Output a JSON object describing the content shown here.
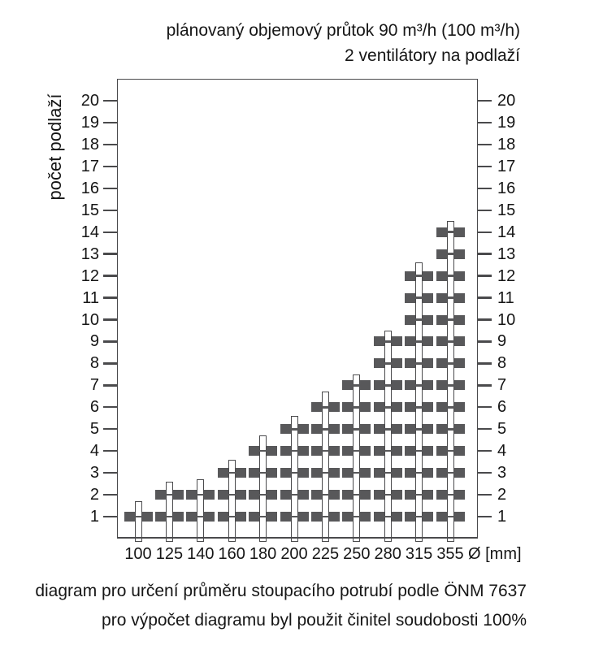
{
  "title": {
    "line1": "plánovaný objemový průtok 90 m³/h (100 m³/h)",
    "line2": "2 ventilátory na podlaží"
  },
  "caption": {
    "line1": "diagram pro určení průměru stoupacího potrubí podle ÖNM 7637",
    "line2": "pro výpočet diagramu byl použit činitel soudobosti 100%"
  },
  "chart_data": {
    "type": "bar",
    "title": "plánovaný objemový průtok 90 m³/h (100 m³/h) — 2 ventilátory na podlaží",
    "xlabel": "Ø [mm]",
    "ylabel": "počet podlaží",
    "categories": [
      "100",
      "125",
      "140",
      "160",
      "180",
      "200",
      "225",
      "250",
      "280",
      "315",
      "355"
    ],
    "series": [
      {
        "name": "dosažitelná celá podlaží (čtvercové značky)",
        "values": [
          1,
          2,
          2,
          3,
          4,
          5,
          6,
          7,
          9,
          12,
          14
        ]
      },
      {
        "name": "vypočtený počet podlaží (vrchol sloupku)",
        "values": [
          1.7,
          2.6,
          2.7,
          3.6,
          4.7,
          5.6,
          6.7,
          7.5,
          9.5,
          12.6,
          14.5
        ]
      }
    ],
    "yticks": [
      1,
      2,
      3,
      4,
      5,
      6,
      7,
      8,
      9,
      10,
      11,
      12,
      13,
      14,
      15,
      16,
      17,
      18,
      19,
      20
    ],
    "ylim": [
      0,
      21
    ],
    "grid": false,
    "legend": false
  },
  "colors": {
    "marker": "#58585a",
    "axis": "#4a4a4c",
    "bar_fill": "#ffffff",
    "text": "#161616"
  }
}
